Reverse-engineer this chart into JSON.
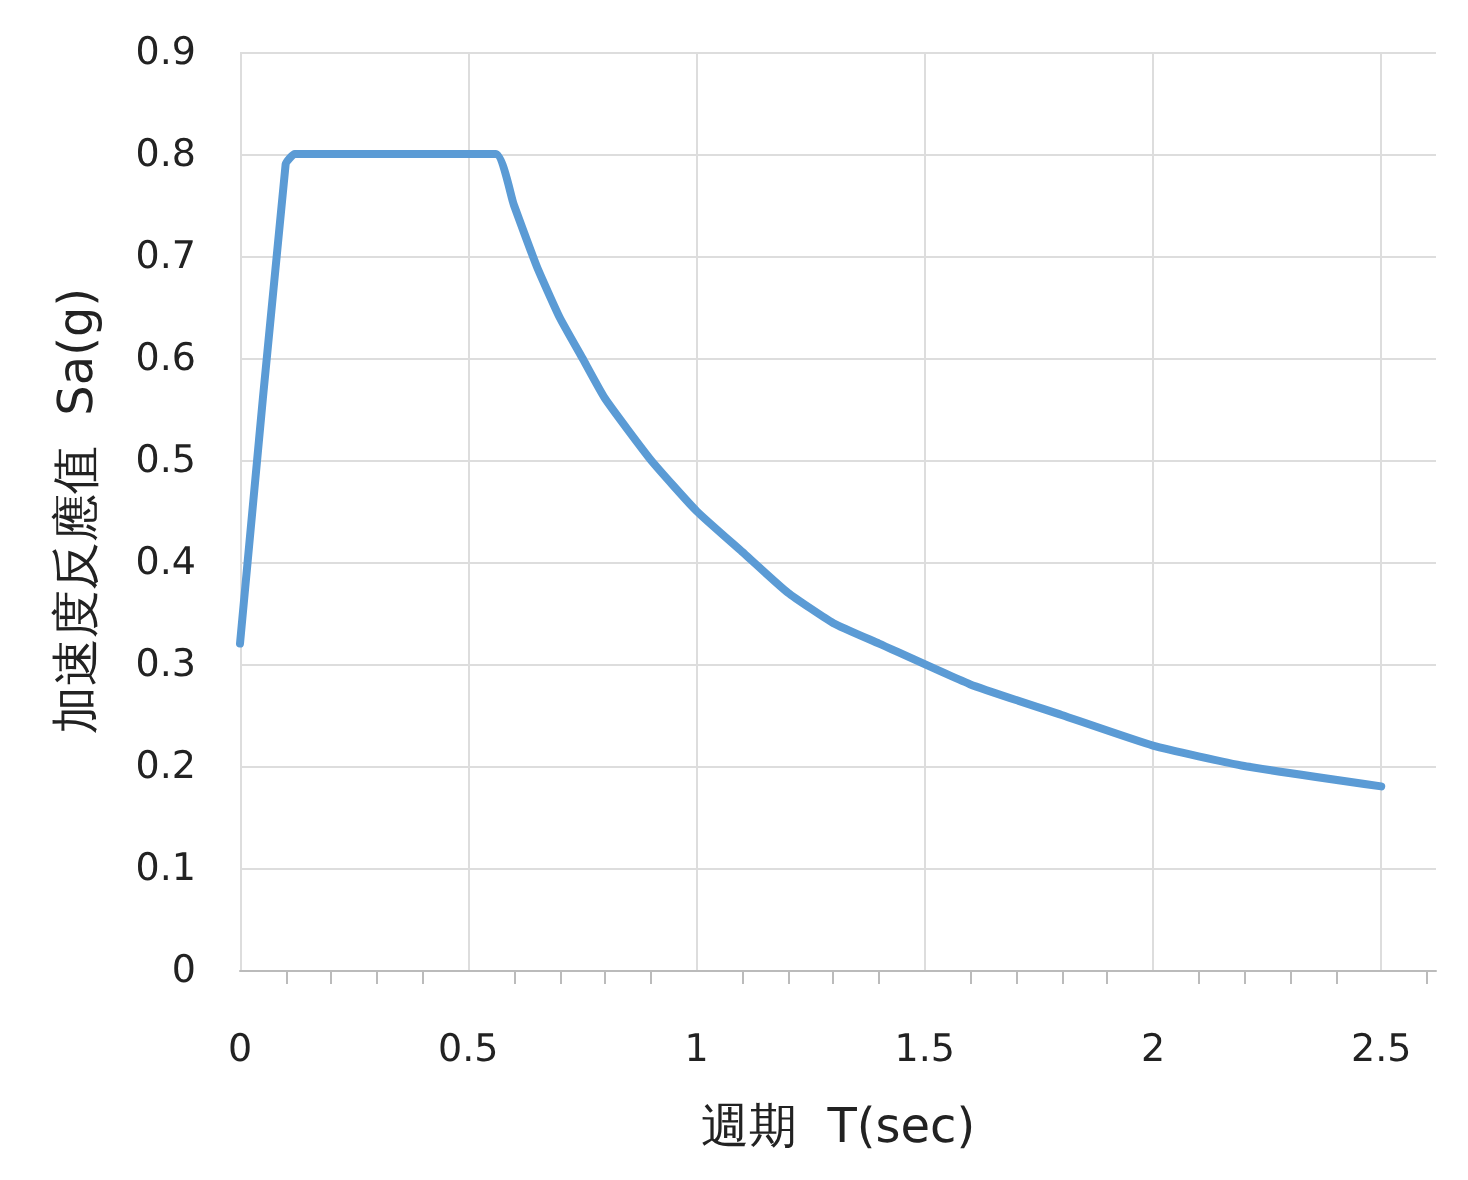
{
  "chart_data": {
    "type": "line",
    "xlabel": "週期  T(sec)",
    "ylabel": "加速度反應值  Sa(g)",
    "x": [
      0,
      0.1,
      0.12,
      0.56,
      0.6,
      0.65,
      0.7,
      0.75,
      0.8,
      0.9,
      1.0,
      1.1,
      1.2,
      1.3,
      1.4,
      1.6,
      1.8,
      2.0,
      2.2,
      2.5
    ],
    "series": [
      {
        "color": "#5b9bd5",
        "values": [
          0.32,
          0.79,
          0.8,
          0.8,
          0.75,
          0.69,
          0.64,
          0.6,
          0.56,
          0.5,
          0.45,
          0.41,
          0.37,
          0.34,
          0.32,
          0.28,
          0.25,
          0.22,
          0.2,
          0.18
        ]
      }
    ],
    "xlim": [
      0,
      2.62
    ],
    "xticks": [
      0,
      0.5,
      1,
      1.5,
      2,
      2.5
    ],
    "ylim": [
      0,
      0.9
    ],
    "yticks": [
      0,
      0.1,
      0.2,
      0.3,
      0.4,
      0.5,
      0.6,
      0.7,
      0.8,
      0.9
    ],
    "grid": true,
    "marker": "none",
    "line_style": "solid"
  }
}
